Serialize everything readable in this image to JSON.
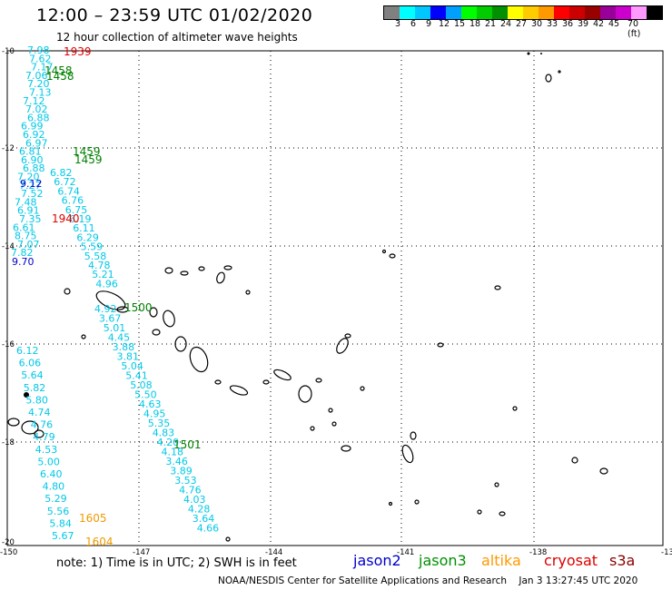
{
  "header": {
    "title": "12:00 – 23:59 UTC 01/02/2020",
    "subtitle": "12 hour collection of altimeter wave heights"
  },
  "colorbar": {
    "colors": [
      "#808080",
      "#00ffff",
      "#00c8ff",
      "#0000ff",
      "#00a0ff",
      "#00ff00",
      "#00cc00",
      "#009000",
      "#ffff00",
      "#ffcc00",
      "#ff9900",
      "#ff0000",
      "#cc0000",
      "#990000",
      "#990099",
      "#cc00cc",
      "#ff99ff",
      "#000000"
    ],
    "labels": [
      "3",
      "6",
      "9",
      "12",
      "15",
      "18",
      "21",
      "24",
      "27",
      "30",
      "33",
      "36",
      "39",
      "42",
      "45",
      "70 (ft)"
    ]
  },
  "axes": {
    "y_labels": [
      "-10",
      "-12",
      "-14",
      "-16",
      "-18",
      "-20"
    ],
    "x_labels": [
      "-150",
      "-147",
      "-144",
      "-141",
      "-138",
      "-13"
    ]
  },
  "tracks": {
    "cyan_values_a": [
      "7.98",
      "7.62",
      "7.17",
      "7.06",
      "7.20",
      "7.13",
      "7.12",
      "7.02",
      "6.88",
      "6.99",
      "6.92",
      "6.97",
      "6.81",
      "6.90",
      "6.88",
      "7.20",
      "7.27",
      "7.52",
      "7.48",
      "6.91",
      "7.35",
      "6.61",
      "8.75",
      "7.07",
      "7.82"
    ],
    "blue_values_a": [
      "9.12",
      "9.70"
    ],
    "cyan_values_b": [
      "6.82",
      "6.72",
      "6.74",
      "6.76",
      "6.75",
      "6.19",
      "6.11",
      "6.29",
      "5.59",
      "5.58",
      "4.78",
      "5.21",
      "4.96"
    ],
    "cyan_values_c": [
      "4.92",
      "3.67",
      "5.01",
      "4.45",
      "3.88",
      "3.81",
      "5.04",
      "5.41",
      "5.08",
      "5.50",
      "4.63",
      "4.95",
      "5.35",
      "4.83",
      "4.20",
      "4.18",
      "3.46",
      "3.89",
      "3.53",
      "4.76",
      "4.03",
      "4.28",
      "3.64",
      "4.66"
    ],
    "cyan_values_d": [
      "6.12",
      "6.06",
      "5.64",
      "5.82",
      "5.80",
      "4.74",
      "4.76",
      "4.79",
      "4.53",
      "5.00",
      "6.40",
      "4.80",
      "5.29",
      "5.56",
      "5.84",
      "5.67"
    ],
    "times": {
      "red_1": "1939",
      "red_2": "1940",
      "green_1": "1458",
      "green_2": "1459",
      "green_3": "1500",
      "green_4": "1501",
      "orange_1": "1605",
      "orange_2": "1604"
    }
  },
  "legend": {
    "note": "note: 1) Time is in UTC; 2) SWH is in feet",
    "satellites": [
      {
        "name": "jason2",
        "color": "#0000cc"
      },
      {
        "name": "jason3",
        "color": "#009000"
      },
      {
        "name": "altika",
        "color": "#ff9900"
      },
      {
        "name": "cryosat",
        "color": "#dd0000"
      },
      {
        "name": "s3a",
        "color": "#8b0000"
      }
    ]
  },
  "footer": {
    "credit": "NOAA/NESDIS Center for Satellite Applications and Research",
    "timestamp": "Jan  3 13:27:45 UTC 2020"
  }
}
